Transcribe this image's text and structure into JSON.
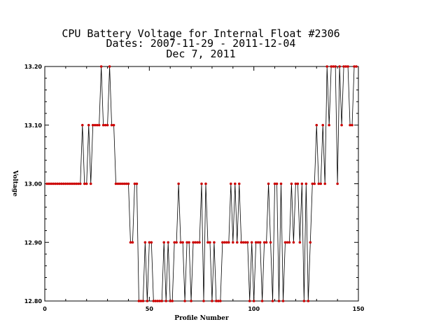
{
  "chart_data": {
    "type": "line",
    "title_lines": [
      "CPU Battery Voltage for Internal Float #2306",
      "Dates:  2007-11-29 -  2011-12-04",
      "Dec  7, 2011"
    ],
    "xlabel": "Profile Number",
    "ylabel": "Voltage",
    "xlim": [
      0,
      150
    ],
    "ylim": [
      12.8,
      13.2
    ],
    "x_ticks": [
      0,
      50,
      100,
      150
    ],
    "x_tick_labels": [
      "0",
      "50",
      "100",
      "150"
    ],
    "y_ticks": [
      12.8,
      12.9,
      13.0,
      13.1,
      13.2
    ],
    "y_tick_labels": [
      "12.80",
      "12.90",
      "13.00",
      "13.10",
      "13.20"
    ],
    "line_color": "#000000",
    "marker_color": "#cc0000",
    "grid": false,
    "series": [
      {
        "x": [
          1,
          2,
          3,
          4,
          5,
          6,
          7,
          8,
          9,
          10,
          11,
          12,
          13,
          14,
          15,
          16,
          17,
          18,
          19,
          20,
          21,
          22,
          23,
          24,
          25,
          26,
          27,
          28,
          29,
          30,
          31,
          32,
          33,
          34,
          35,
          36,
          37,
          38,
          39,
          40,
          41,
          42,
          43,
          44,
          45,
          46,
          47,
          48,
          49,
          50,
          51,
          52,
          53,
          54,
          55,
          56,
          57,
          58,
          59,
          60,
          61,
          62,
          63,
          64,
          65,
          66,
          67,
          68,
          69,
          70,
          71,
          72,
          73,
          74,
          75,
          76,
          77,
          78,
          79,
          80,
          81,
          82,
          83,
          84,
          85,
          86,
          87,
          88,
          89,
          90,
          91,
          92,
          93,
          94,
          95,
          96,
          97,
          98,
          99,
          100,
          101,
          102,
          103,
          104,
          105,
          106,
          107,
          108,
          109,
          110,
          111,
          112,
          113,
          114,
          115,
          116,
          117,
          118,
          119,
          120,
          121,
          122,
          123,
          124,
          125,
          126,
          127,
          128,
          129,
          130,
          131,
          132,
          133,
          134,
          135,
          136,
          137,
          138,
          139,
          140,
          141,
          142,
          143,
          144,
          145,
          146,
          147,
          148,
          149
        ],
        "y": [
          13.0,
          13.0,
          13.0,
          13.0,
          13.0,
          13.0,
          13.0,
          13.0,
          13.0,
          13.0,
          13.0,
          13.0,
          13.0,
          13.0,
          13.0,
          13.0,
          13.0,
          13.1,
          13.0,
          13.0,
          13.1,
          13.0,
          13.1,
          13.1,
          13.1,
          13.1,
          13.2,
          13.1,
          13.1,
          13.1,
          13.2,
          13.1,
          13.1,
          13.0,
          13.0,
          13.0,
          13.0,
          13.0,
          13.0,
          13.0,
          12.9,
          12.9,
          13.0,
          13.0,
          12.8,
          12.8,
          12.8,
          12.9,
          12.8,
          12.9,
          12.9,
          12.8,
          12.8,
          12.8,
          12.8,
          12.8,
          12.9,
          12.8,
          12.9,
          12.8,
          12.8,
          12.9,
          12.9,
          13.0,
          12.9,
          12.9,
          12.8,
          12.9,
          12.9,
          12.8,
          12.9,
          12.9,
          12.9,
          12.9,
          13.0,
          12.8,
          13.0,
          12.9,
          12.9,
          12.8,
          12.9,
          12.8,
          12.8,
          12.8,
          12.9,
          12.9,
          12.9,
          12.9,
          13.0,
          12.9,
          13.0,
          12.9,
          13.0,
          12.9,
          12.9,
          12.9,
          12.9,
          12.8,
          12.9,
          12.8,
          12.9,
          12.9,
          12.9,
          12.8,
          12.9,
          12.9,
          13.0,
          12.9,
          12.8,
          13.0,
          13.0,
          12.8,
          13.0,
          12.8,
          12.9,
          12.9,
          12.9,
          13.0,
          12.9,
          13.0,
          13.0,
          12.9,
          13.0,
          12.8,
          13.0,
          12.8,
          12.9,
          13.0,
          13.0,
          13.1,
          13.0,
          13.0,
          13.1,
          13.0,
          13.2,
          13.1,
          13.2,
          13.2,
          13.2,
          13.0,
          13.2,
          13.1,
          13.2,
          13.2,
          13.2,
          13.1,
          13.1,
          13.2,
          13.2
        ]
      }
    ]
  }
}
